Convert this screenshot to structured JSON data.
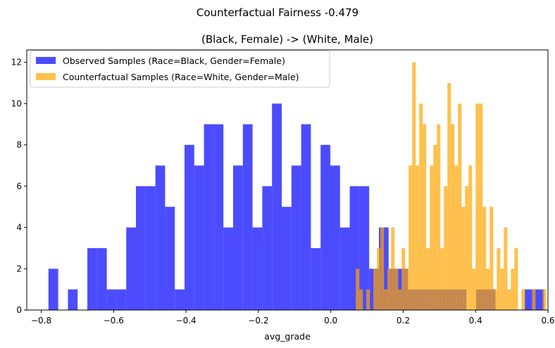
{
  "chart_data": {
    "type": "histogram",
    "suptitle": "Counterfactual Fairness -0.479",
    "title": "(Black, Female) -> (White, Male)",
    "xlabel": "avg_grade",
    "ylabel": "",
    "xlim": [
      -0.84,
      0.6
    ],
    "ylim": [
      0,
      12.6
    ],
    "xticks": [
      -0.8,
      -0.6,
      -0.4,
      -0.2,
      0.0,
      0.2,
      0.4,
      0.6
    ],
    "xtick_labels": [
      "−0.8",
      "−0.6",
      "−0.4",
      "−0.2",
      "0.0",
      "0.2",
      "0.4",
      "0.6"
    ],
    "yticks": [
      0,
      2,
      4,
      6,
      8,
      10,
      12
    ],
    "ytick_labels": [
      "0",
      "2",
      "4",
      "6",
      "8",
      "10",
      "12"
    ],
    "legend_position": "top-left",
    "series": [
      {
        "name": "Observed Samples (Race=Black, Gender=Female)",
        "color": "#0000ff",
        "opacity": 0.7,
        "bin_start": -0.78,
        "bin_width": 0.02685,
        "counts": [
          2,
          0,
          1,
          0,
          3,
          3,
          1,
          1,
          4,
          6,
          6,
          7,
          5,
          1,
          8,
          7,
          9,
          9,
          4,
          7,
          9,
          4,
          6,
          10,
          5,
          7,
          9,
          3,
          8,
          7,
          4,
          6,
          6,
          2,
          4,
          2,
          2,
          1,
          1,
          1,
          1,
          1,
          1,
          0,
          1,
          1,
          0,
          0,
          0,
          1,
          1
        ]
      },
      {
        "name": "Counterfactual Samples (Race=White, Gender=Male)",
        "color": "#ffa500",
        "opacity": 0.7,
        "bin_start": 0.069,
        "bin_width": 0.00974,
        "counts": [
          2,
          1,
          0,
          1,
          0,
          2,
          3,
          4,
          1,
          2,
          4,
          2,
          1,
          3,
          2,
          7,
          12,
          7,
          10,
          9,
          3,
          7,
          8,
          9,
          3,
          6,
          11,
          9,
          7,
          10,
          5,
          6,
          7,
          2,
          10,
          10,
          5,
          2,
          5,
          1,
          3,
          2,
          4,
          1,
          2,
          3,
          0,
          1,
          0,
          0,
          1,
          0,
          0,
          1
        ]
      }
    ]
  }
}
